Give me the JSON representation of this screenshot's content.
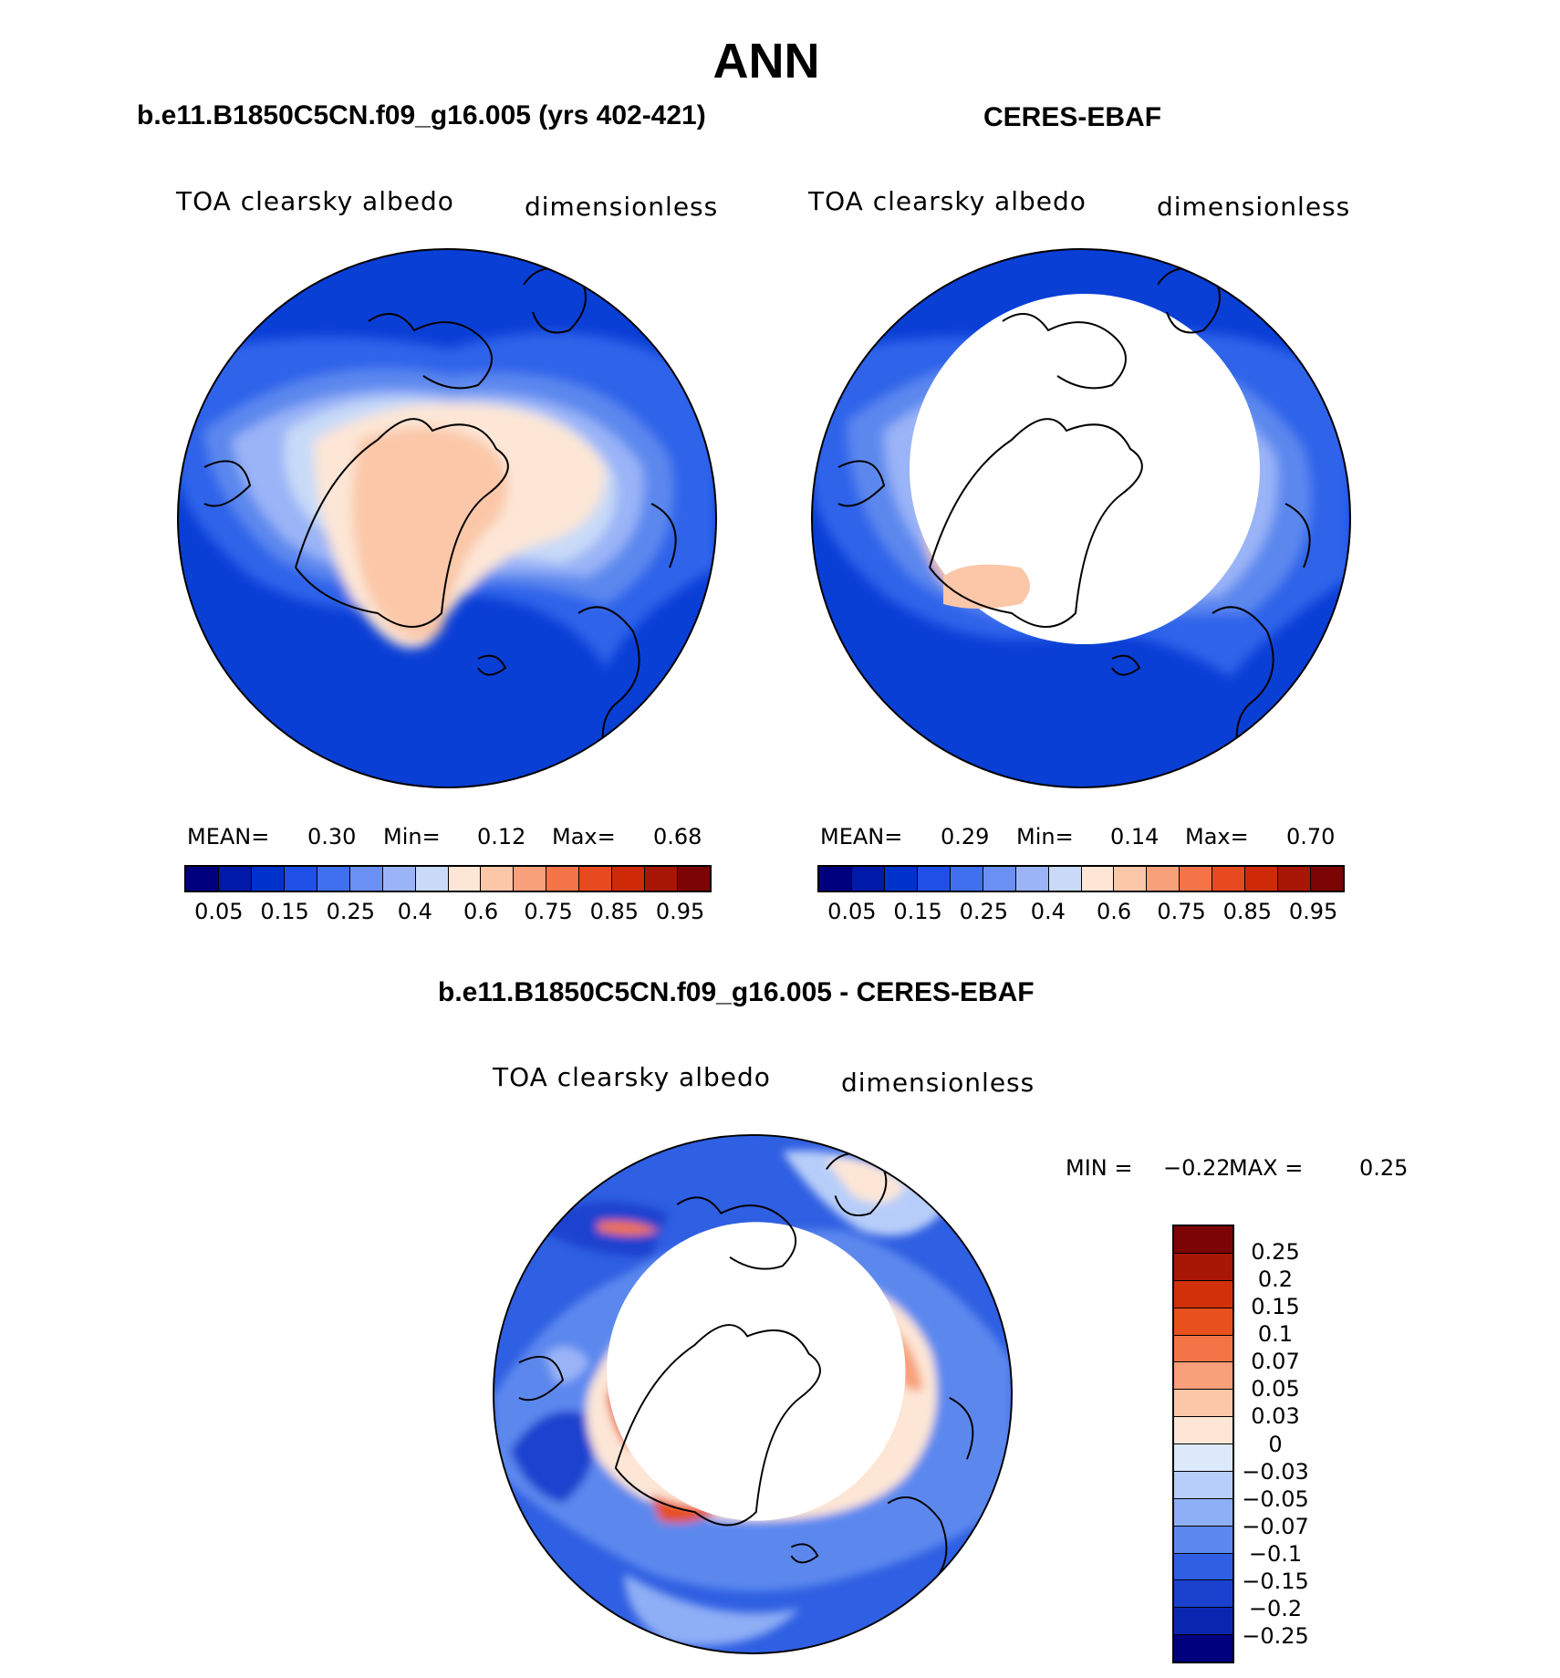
{
  "title": "ANN",
  "panels": {
    "model": {
      "title": "b.e11.B1850C5CN.f09_g16.005 (yrs 402-421)",
      "variable": "TOA clearsky albedo",
      "units": "dimensionless",
      "mean_label": "MEAN=",
      "mean": "0.30",
      "min_label": "Min=",
      "min": "0.12",
      "max_label": "Max=",
      "max": "0.68"
    },
    "obs": {
      "title": "CERES-EBAF",
      "variable": "TOA clearsky albedo",
      "units": "dimensionless",
      "mean_label": "MEAN=",
      "mean": "0.29",
      "min_label": "Min=",
      "min": "0.14",
      "max_label": "Max=",
      "max": "0.70"
    },
    "diff": {
      "title": "b.e11.B1850C5CN.f09_g16.005 - CERES-EBAF",
      "variable": "TOA clearsky albedo",
      "units": "dimensionless",
      "min_label": "MIN =",
      "min": "−0.22",
      "max_label": "MAX =",
      "max": "0.25"
    }
  },
  "colorbar_main": {
    "colors": [
      "#00007f",
      "#0019a8",
      "#0033cc",
      "#1f4fe6",
      "#4070f0",
      "#6a90f5",
      "#9ab4f7",
      "#c8daf8",
      "#fde6d6",
      "#fbc7a8",
      "#f8a07a",
      "#f47448",
      "#e84a20",
      "#cf2a08",
      "#a81606",
      "#7d0404"
    ],
    "ticks": [
      "0.05",
      "0.15",
      "0.25",
      "0.4",
      "0.6",
      "0.75",
      "0.85",
      "0.95"
    ]
  },
  "colorbar_diff": {
    "colors": [
      "#7d0404",
      "#a81606",
      "#d2300a",
      "#e8501e",
      "#f47448",
      "#f8a07a",
      "#fbc7a8",
      "#fde6d6",
      "#dbe9fb",
      "#b7cdf9",
      "#8eaef5",
      "#5c88ee",
      "#2f5fe2",
      "#1a42cf",
      "#0a26b0",
      "#00007f"
    ],
    "ticks": [
      "0.25",
      "0.2",
      "0.15",
      "0.1",
      "0.07",
      "0.05",
      "0.03",
      "0",
      "−0.03",
      "−0.05",
      "−0.07",
      "−0.1",
      "−0.15",
      "−0.2",
      "−0.25"
    ]
  }
}
